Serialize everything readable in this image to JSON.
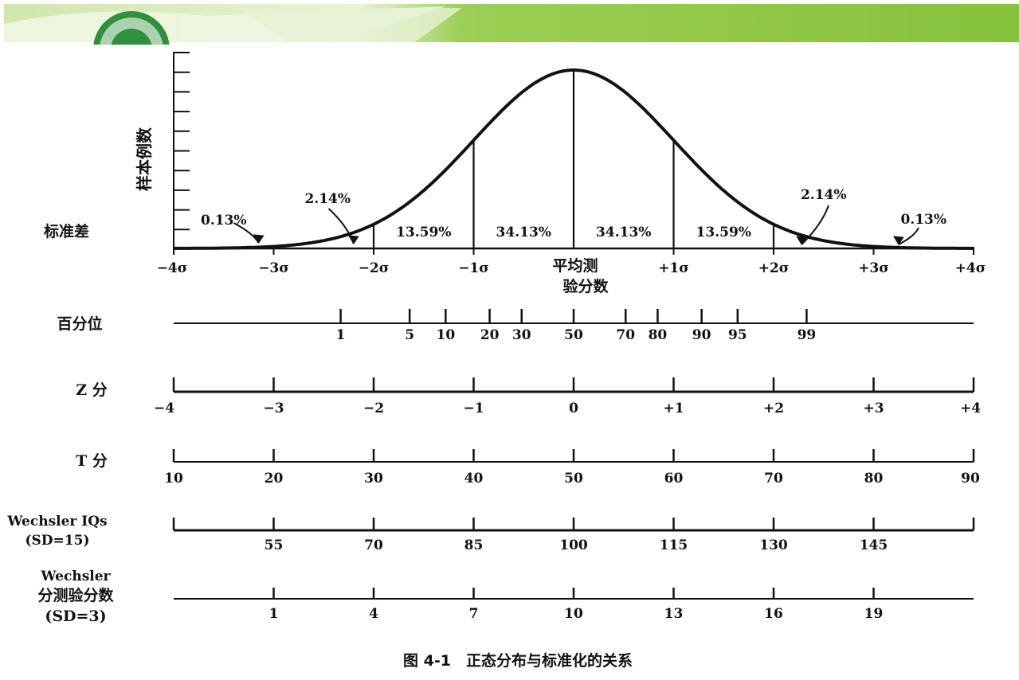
{
  "chart_data": {
    "type": "line",
    "title": "",
    "caption": "图 4-1　正态分布与标准化的关系",
    "ylabel": "样本例数",
    "sd_row_label": "标准差",
    "mean_label": [
      "平均测",
      "验分数"
    ],
    "xlim": [
      -4,
      4
    ],
    "x_ticks": [
      {
        "x": -4,
        "label": "−4σ"
      },
      {
        "x": -3,
        "label": "−3σ"
      },
      {
        "x": -2,
        "label": "−2σ"
      },
      {
        "x": -1,
        "label": "−1σ"
      },
      {
        "x": 1,
        "label": "+1σ"
      },
      {
        "x": 2,
        "label": "+2σ"
      },
      {
        "x": 3,
        "label": "+3σ"
      },
      {
        "x": 4,
        "label": "+4σ"
      }
    ],
    "curve": "normal distribution",
    "sd_lines": [
      -3,
      -2,
      -1,
      0,
      1,
      2,
      3
    ],
    "region_percents": [
      {
        "label": "0.13%",
        "x": -3.5
      },
      {
        "label": "2.14%",
        "x": -2.5
      },
      {
        "label": "13.59%",
        "x": -1.5
      },
      {
        "label": "34.13%",
        "x": -0.5
      },
      {
        "label": "34.13%",
        "x": 0.5
      },
      {
        "label": "13.59%",
        "x": 1.5
      },
      {
        "label": "2.14%",
        "x": 2.5
      },
      {
        "label": "0.13%",
        "x": 3.5
      }
    ],
    "scales": [
      {
        "label": [
          "百分位"
        ],
        "ticks": [
          {
            "z": -2.33,
            "label": "1"
          },
          {
            "z": -1.64,
            "label": "5"
          },
          {
            "z": -1.28,
            "label": "10"
          },
          {
            "z": -0.84,
            "label": "20"
          },
          {
            "z": -0.52,
            "label": "30"
          },
          {
            "z": 0,
            "label": "50"
          },
          {
            "z": 0.52,
            "label": "70"
          },
          {
            "z": 0.84,
            "label": "80"
          },
          {
            "z": 1.28,
            "label": "90"
          },
          {
            "z": 1.64,
            "label": "95"
          },
          {
            "z": 2.33,
            "label": "99"
          }
        ]
      },
      {
        "label": [
          "Z 分"
        ],
        "ticks": [
          {
            "z": -4,
            "label": "−4"
          },
          {
            "z": -3,
            "label": "−3"
          },
          {
            "z": -2,
            "label": "−2"
          },
          {
            "z": -1,
            "label": "−1"
          },
          {
            "z": 0,
            "label": "0"
          },
          {
            "z": 1,
            "label": "+1"
          },
          {
            "z": 2,
            "label": "+2"
          },
          {
            "z": 3,
            "label": "+3"
          },
          {
            "z": 4,
            "label": "+4"
          }
        ]
      },
      {
        "label": [
          "T 分"
        ],
        "ticks": [
          {
            "z": -4,
            "label": "10"
          },
          {
            "z": -3,
            "label": "20"
          },
          {
            "z": -2,
            "label": "30"
          },
          {
            "z": -1,
            "label": "40"
          },
          {
            "z": 0,
            "label": "50"
          },
          {
            "z": 1,
            "label": "60"
          },
          {
            "z": 2,
            "label": "70"
          },
          {
            "z": 3,
            "label": "80"
          },
          {
            "z": 4,
            "label": "90"
          }
        ]
      },
      {
        "label": [
          "Wechsler IQs",
          "(SD=15)"
        ],
        "ticks": [
          {
            "z": -4,
            "label": ""
          },
          {
            "z": -3,
            "label": "55"
          },
          {
            "z": -2,
            "label": "70"
          },
          {
            "z": -1,
            "label": "85"
          },
          {
            "z": 0,
            "label": "100"
          },
          {
            "z": 1,
            "label": "115"
          },
          {
            "z": 2,
            "label": "130"
          },
          {
            "z": 3,
            "label": "145"
          },
          {
            "z": 4,
            "label": ""
          }
        ]
      },
      {
        "label": [
          "Wechsler",
          "分测验分数",
          "(SD=3)"
        ],
        "ticks": [
          {
            "z": -3,
            "label": "1"
          },
          {
            "z": -2,
            "label": "4"
          },
          {
            "z": -1,
            "label": "7"
          },
          {
            "z": 0,
            "label": "10"
          },
          {
            "z": 1,
            "label": "13"
          },
          {
            "z": 2,
            "label": "16"
          },
          {
            "z": 3,
            "label": "19"
          }
        ]
      }
    ]
  },
  "colors": {
    "banner_green": "#8cc63f",
    "banner_light": "#d9ecbf",
    "ink": "#111111"
  },
  "icons": {
    "logo": "school-seal-icon"
  }
}
